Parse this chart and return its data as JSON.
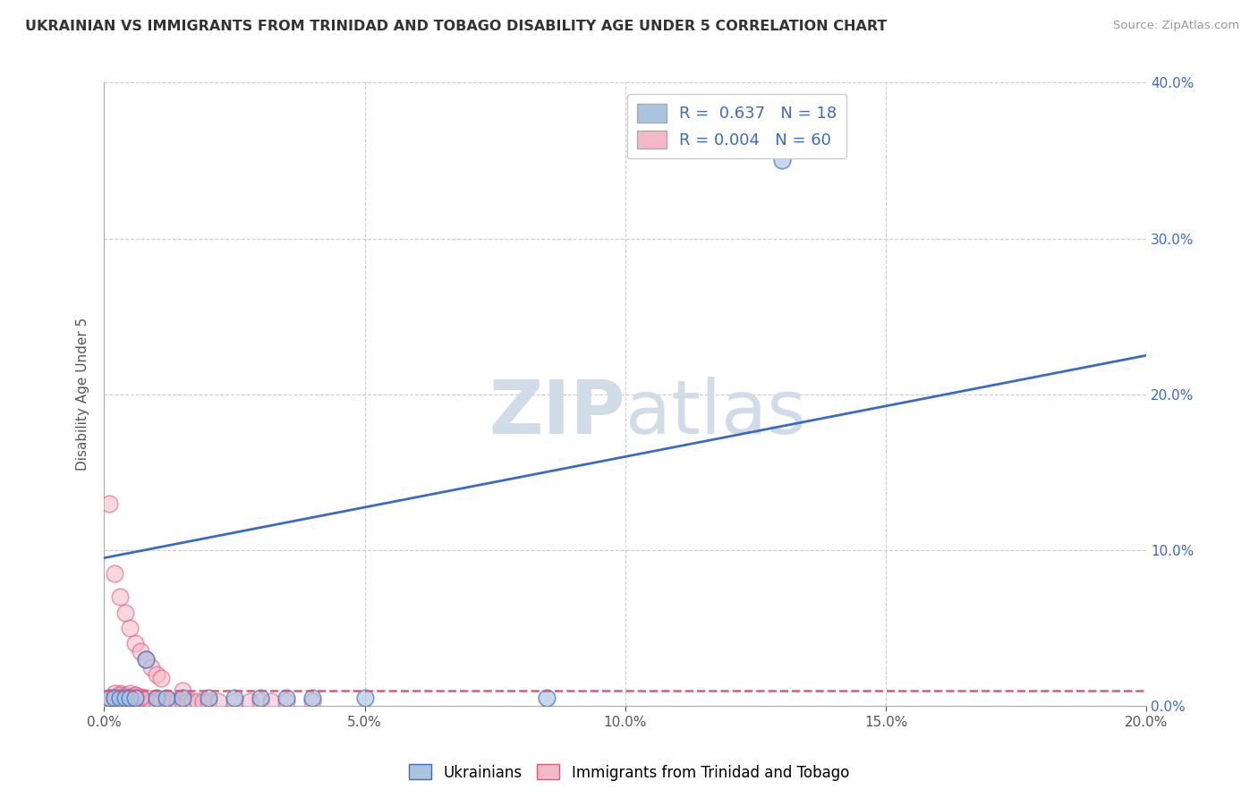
{
  "title": "UKRAINIAN VS IMMIGRANTS FROM TRINIDAD AND TOBAGO DISABILITY AGE UNDER 5 CORRELATION CHART",
  "source": "Source: ZipAtlas.com",
  "ylabel": "Disability Age Under 5",
  "legend_label_1": "Ukrainians",
  "legend_label_2": "Immigrants from Trinidad and Tobago",
  "R1": 0.637,
  "N1": 18,
  "R2": 0.004,
  "N2": 60,
  "xlim": [
    0.0,
    0.2
  ],
  "ylim": [
    0.0,
    0.4
  ],
  "xticks": [
    0.0,
    0.05,
    0.1,
    0.15,
    0.2
  ],
  "yticks": [
    0.0,
    0.1,
    0.2,
    0.3,
    0.4
  ],
  "color_blue": "#aac4e0",
  "color_pink": "#f4b8c8",
  "trend_blue": "#3a6bc4",
  "trend_pink": "#e05878",
  "background_color": "#ffffff",
  "grid_color": "#cccccc",
  "watermark_color": "#d0dce8",
  "uk_x": [
    0.001,
    0.002,
    0.003,
    0.004,
    0.005,
    0.006,
    0.008,
    0.01,
    0.012,
    0.015,
    0.02,
    0.025,
    0.03,
    0.035,
    0.04,
    0.05,
    0.085,
    0.13
  ],
  "uk_y": [
    0.005,
    0.005,
    0.005,
    0.005,
    0.005,
    0.005,
    0.03,
    0.005,
    0.005,
    0.005,
    0.005,
    0.005,
    0.005,
    0.005,
    0.005,
    0.005,
    0.005,
    0.35
  ],
  "tt_x": [
    0.001,
    0.001,
    0.001,
    0.002,
    0.002,
    0.002,
    0.002,
    0.003,
    0.003,
    0.003,
    0.003,
    0.003,
    0.004,
    0.004,
    0.004,
    0.004,
    0.005,
    0.005,
    0.005,
    0.005,
    0.006,
    0.006,
    0.006,
    0.006,
    0.006,
    0.007,
    0.007,
    0.007,
    0.008,
    0.008,
    0.008,
    0.009,
    0.009,
    0.01,
    0.01,
    0.011,
    0.011,
    0.012,
    0.013,
    0.014,
    0.015,
    0.015,
    0.016,
    0.017,
    0.018,
    0.019,
    0.02,
    0.022,
    0.025,
    0.028,
    0.03,
    0.032,
    0.035,
    0.04,
    0.002,
    0.003,
    0.004,
    0.005,
    0.006,
    0.007
  ],
  "tt_y": [
    0.003,
    0.005,
    0.13,
    0.003,
    0.005,
    0.006,
    0.085,
    0.003,
    0.004,
    0.005,
    0.07,
    0.008,
    0.003,
    0.004,
    0.06,
    0.007,
    0.003,
    0.004,
    0.05,
    0.006,
    0.003,
    0.004,
    0.04,
    0.007,
    0.005,
    0.003,
    0.035,
    0.005,
    0.003,
    0.03,
    0.005,
    0.003,
    0.025,
    0.003,
    0.02,
    0.003,
    0.018,
    0.003,
    0.003,
    0.003,
    0.003,
    0.01,
    0.003,
    0.003,
    0.003,
    0.003,
    0.003,
    0.003,
    0.003,
    0.003,
    0.003,
    0.003,
    0.003,
    0.003,
    0.008,
    0.007,
    0.006,
    0.008,
    0.007,
    0.006
  ],
  "blue_trend_x0": 0.0,
  "blue_trend_y0": 0.095,
  "blue_trend_x1": 0.2,
  "blue_trend_y1": 0.225,
  "pink_trend_x0": 0.0,
  "pink_trend_y0": 0.01,
  "pink_trend_x1": 0.2,
  "pink_trend_y1": 0.01
}
